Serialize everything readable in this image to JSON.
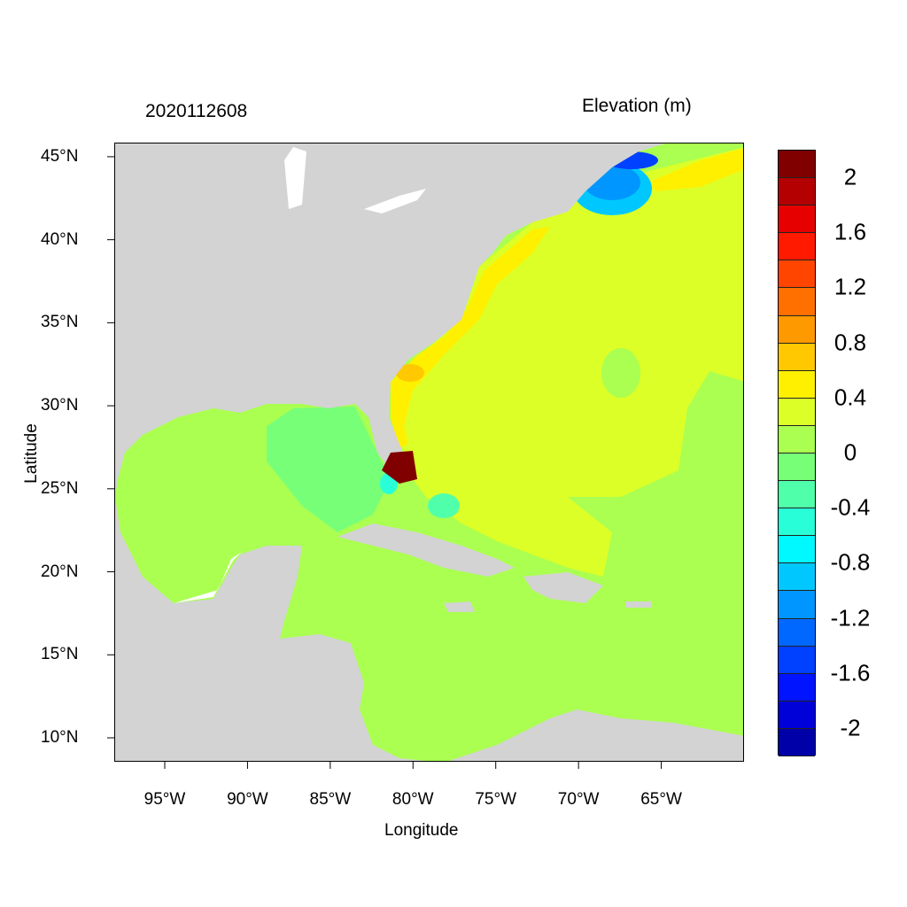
{
  "header": {
    "date": "2020112608",
    "variable": "Elevation (m)"
  },
  "axes": {
    "xlabel": "Longitude",
    "ylabel": "Latitude",
    "x_ticks": [
      "95°W",
      "90°W",
      "85°W",
      "80°W",
      "75°W",
      "70°W",
      "65°W"
    ],
    "x_tick_values": [
      -95,
      -90,
      -85,
      -80,
      -75,
      -70,
      -65
    ],
    "y_ticks": [
      "45°N",
      "40°N",
      "35°N",
      "30°N",
      "25°N",
      "20°N",
      "15°N",
      "10°N"
    ],
    "y_tick_values": [
      45,
      40,
      35,
      30,
      25,
      20,
      15,
      10
    ],
    "lon_range": [
      -98.05,
      -60
    ],
    "lat_range": [
      8.56,
      45.85
    ]
  },
  "colorbar": {
    "labels": [
      "2",
      "1.6",
      "1.2",
      "0.8",
      "0.4",
      "0",
      "-0.4",
      "-0.8",
      "-1.2",
      "-1.6",
      "-2"
    ],
    "label_values": [
      2,
      1.6,
      1.2,
      0.8,
      0.4,
      0,
      -0.4,
      -0.8,
      -1.2,
      -1.6,
      -2
    ],
    "range": [
      -2.2,
      2.2
    ],
    "colors": [
      "#800000",
      "#b40000",
      "#e60000",
      "#ff1a00",
      "#ff4500",
      "#ff7000",
      "#ff9900",
      "#ffc800",
      "#fff000",
      "#dcff28",
      "#aaff50",
      "#78ff78",
      "#50ffaa",
      "#28ffd8",
      "#00f8ff",
      "#00c8ff",
      "#0096ff",
      "#0068ff",
      "#0040ff",
      "#0014ff",
      "#0000d8",
      "#0000a8"
    ]
  },
  "colors": {
    "land": "#d3d3d3",
    "water_white": "#ffffff"
  }
}
